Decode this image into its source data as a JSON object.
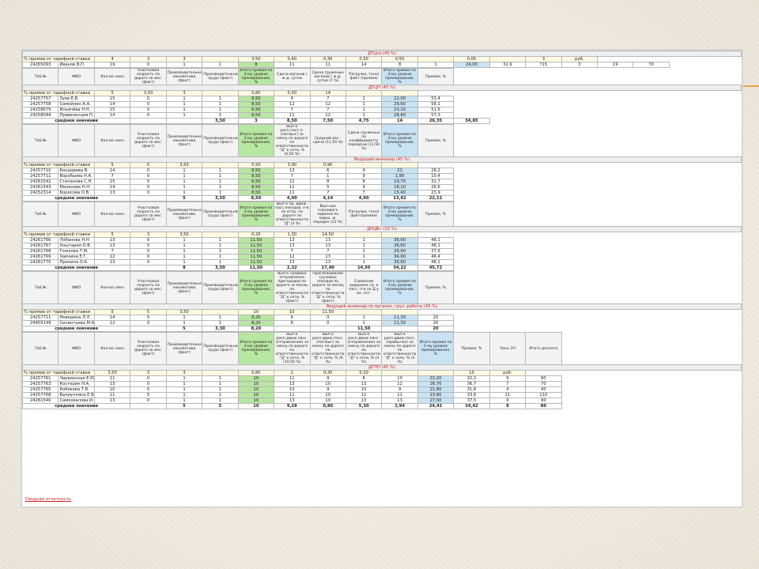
{
  "footer_link": "Сводная отчетность",
  "blocks": [
    {
      "title": "ДТЦэл (45 %)",
      "pct_row": [
        "% премии от тарифной ставки",
        "4",
        "3",
        "3",
        "",
        "3,50",
        "0,40",
        "0,30",
        "0,50",
        "0,50",
        "",
        "0,05",
        "",
        "3",
        "руб."
      ],
      "rows": [
        [
          "24265093",
          "Иванов В.П.",
          "19",
          "0",
          "1",
          "1",
          "8",
          "11",
          "11",
          "14",
          "8",
          "1",
          "24,00",
          "32,9",
          "715",
          "3",
          "19",
          "70"
        ]
      ],
      "avg": []
    },
    {
      "headers": [
        "Таб.№",
        "ФИО",
        "Кол-во смен",
        "Участковая скорость по дороге за мес. (факт)",
        "Производительность локомотива (факт)",
        "Производительность труда (факт)",
        "Итого премия по 2-му уровню премирования, %",
        "Сдача вагонов / ж.д. сутки",
        "Сдача груженых вагонов / ж.д. сутки (7 %)",
        "Погрузка, тонн/ факт (премия)",
        "Итого премия по 3-му уровню премирования, %",
        "Премия, %"
      ],
      "title": "ДТЦП (45 %)",
      "pct_row": [
        "% премии от тарифной ставки",
        "5",
        "3,50",
        "3",
        "",
        "0,80",
        "0,50",
        "14",
        "",
        ""
      ],
      "rows": [
        [
          "24257757",
          "Зуев Е.В.",
          "15",
          "0",
          "1",
          "1",
          "8,50",
          "9",
          "7",
          "1",
          "22,00",
          "53,4"
        ],
        [
          "24257758",
          "Самойлин А.А.",
          "14",
          "0",
          "1",
          "1",
          "8,50",
          "12",
          "12",
          "1",
          "29,60",
          "58,1"
        ],
        [
          "24258679",
          "Ильичёва Н.Н.",
          "15",
          "0",
          "1",
          "1",
          "8,50",
          "7",
          "7",
          "1",
          "23,10",
          "51,6"
        ],
        [
          "24258044",
          "Привезенцев П.И.",
          "14",
          "0",
          "1",
          "1",
          "8,50",
          "11",
          "12",
          "1",
          "28,80",
          "57,3"
        ]
      ],
      "avg": [
        "среднее значение",
        "",
        "",
        "3,50",
        "3",
        "8,50",
        "7,50",
        "4,75",
        "14",
        "26,35",
        "34,85"
      ]
    },
    {
      "headers": [
        "Таб.№",
        "ФИО",
        "Кол-во смен",
        "Участковая скорость по дороге за мес. (факт)",
        "Производительность локомотива (факт)",
        "Производительность труда (факт)",
        "Итого премия по 2-му уровню премирования, %",
        "Вып-е расп.пасс.п. (пог/выг) за смену по дороге по ответственности \"Д\" к сети, % (0,50 %)",
        "Средний вес - сдача (11,50 %)",
        "Сдача груженых по коэффициенту передачи (11,50 %)",
        "Итого премия по 3-му уровню премирования, %",
        "Премия, %"
      ],
      "title": "Ведущий инженер (45 %)",
      "pct_row": [
        "% премии от тарифной ставки",
        "5",
        "5",
        "3,50",
        "",
        "0,50",
        "3,90",
        "0,90",
        "",
        ""
      ],
      "rows": [
        [
          "24257710",
          "Бондарева В.",
          "14",
          "0",
          "1",
          "1",
          "8,50",
          "13",
          "6",
          "9",
          "23",
          "28,2"
        ],
        [
          "24257711",
          "Воробьева Н.А.",
          "7",
          "0",
          "1",
          "1",
          "8,50",
          "7",
          "1",
          "9",
          "1,90",
          "10,4"
        ],
        [
          "24261542",
          "Степанова С.Н.",
          "15",
          "0",
          "1",
          "1",
          "8,50",
          "11",
          "8",
          "8",
          "19,70",
          "31,7"
        ],
        [
          "24261543",
          "Малахова Н.Н.",
          "14",
          "0",
          "1",
          "1",
          "8,50",
          "11",
          "5",
          "9",
          "18,10",
          "26,6"
        ],
        [
          "24252314",
          "Борисова О.В.",
          "13",
          "0",
          "1",
          "1",
          "8,50",
          "11",
          "7",
          "7",
          "15,40",
          "23,9"
        ]
      ],
      "avg": [
        "среднее значение",
        "",
        "5",
        "3,50",
        "8,50",
        "4,00",
        "4,14",
        "4,60",
        "13,62",
        "22,12"
      ]
    },
    {
      "headers": [
        "Таб.№",
        "ФИО",
        "Кол-во смен",
        "Участковая скорость по дороге за мес. (факт)",
        "Производительность локомотива (факт)",
        "Производительность труда (факт)",
        "Итого премия по 2-му уровню премирования, %",
        "Вып-е пр. движ. пасс.поездов. п-в по отпр. по дороге по ответственности \"Д\" (3 %)",
        "Вып-ние планового задания по марш. ж. передач (21 %)",
        "Погрузка, тонн/ факт(премия)",
        "Итого премия по 3-му уровню премирования, %",
        "Премия, %"
      ],
      "title": "ДНЦВ» (33 %)",
      "pct_row": [
        "% премии от тарифной ставки",
        "5",
        "3",
        "3,50",
        "",
        "0,20",
        "1,30",
        "14,50",
        "",
        ""
      ],
      "rows": [
        [
          "24261766",
          "Лобанова Н.Н.",
          "13",
          "0",
          "1",
          "1",
          "11,50",
          "13",
          "13",
          "1",
          "36,60",
          "48,1"
        ],
        [
          "24261767",
          "Хоштария О.В.",
          "13",
          "0",
          "1",
          "1",
          "11,50",
          "13",
          "13",
          "1",
          "36,60",
          "48,1"
        ],
        [
          "24261768",
          "Гожкова Т.М.",
          "7",
          "0",
          "1",
          "1",
          "11,50",
          "7",
          "7",
          "1",
          "26,40",
          "37,9"
        ],
        [
          "24261769",
          "Хамзина Е.Г.",
          "12",
          "0",
          "1",
          "1",
          "11,50",
          "12",
          "13",
          "1",
          "34,90",
          "46,4"
        ],
        [
          "24261770",
          "Пронина О.А.",
          "13",
          "0",
          "1",
          "1",
          "11,50",
          "13",
          "13",
          "1",
          "36,60",
          "48,1"
        ]
      ],
      "avg": [
        "среднее значение",
        "",
        "8",
        "3,50",
        "11,50",
        "2,32",
        "17,40",
        "14,50",
        "34,22",
        "45,72"
      ]
    },
    {
      "headers": [
        "Таб.№",
        "ФИО",
        "Кол-во смен",
        "Участковая скорость по дороге за мес. (факт)",
        "Производительность локомотива (факт)",
        "Производительность труда (факт)",
        "Итого премия по 2-му уровню премирования, %",
        "Вып-е графика отправления пригородов по дороге за месяц по ответственности \"Д\" к сети, % (факт)",
        "Прослеживание грузовых поездов по дороге за месяц по ответственности \"Д\" к сети, % (факт)",
        "Снижение задержек гр. и пасс. п-в по Д у вх. сет.",
        "Итого премия по 3-му уровню премирования, %",
        "Премия, %"
      ],
      "title": "Ведущий инженер по организ. груз. работы (45 %)",
      "pct_row": [
        "% премии от тарифной ставки",
        "5",
        "5",
        "3,50",
        "",
        "10",
        "10",
        "11,50",
        "",
        ""
      ],
      "rows": [
        [
          "24257711",
          "Неведина Л.Л.",
          "14",
          "0",
          "1",
          "1",
          "8,20",
          "6",
          "0",
          "1",
          "11,30",
          "20"
        ],
        [
          "24455149",
          "Силантьева М.А.",
          "12",
          "0",
          "1",
          "1",
          "8,20",
          "6",
          "0",
          "1",
          "11,30",
          "20"
        ]
      ],
      "avg": [
        "среднее значение",
        "",
        "5",
        "3,30",
        "8,20",
        "",
        "",
        "11,50",
        "",
        "20"
      ]
    },
    {
      "headers": [
        "Таб.№",
        "ФИО",
        "Кол-во смен",
        "Участковая скорость по дороге за мес. (факт)",
        "Производительность локомотива (факт)",
        "Производительность труда (факт)",
        "Итого премия по 3-му уровню премирования, %",
        "Вып-е расп.движ.пасс. (отправление) за смену по дороге по ответственности \"Д\" к сети, % (10,50 %)",
        "Вып-е расп.движ.пасс. (пог/выг) за смену по дороге по ответственности \"Д\" к сети, % (6 %)",
        "Вып-е расп.движ.пасс. (отправление) за смену по дороге по ответственности \"Д\" к сети, % (4 %)",
        "Вып-е расп.движ.пасс. (прибытие) за смену по дороге по ответственности \"Д\" к сети, % (3 %)",
        "Итого премия по 2-му уровню премирования, %",
        "Премия, %",
        "Часы ЭЧ",
        "Итого доплата"
      ],
      "title": "ДГПП (45 %)",
      "pct_row": [
        "% премии от тарифной ставки",
        "3,50",
        "3",
        "3",
        "",
        "0,80",
        "1",
        "0,30",
        "0,20",
        "",
        "",
        "10",
        "руб."
      ],
      "rows": [
        [
          "24257761",
          "Червинская Е.Ю.",
          "11",
          "0",
          "1",
          "1",
          "10",
          "11",
          "9",
          "8",
          "10",
          "22,20",
          "32,2",
          "9",
          "90"
        ],
        [
          "24257763",
          "Костерин Н.А.",
          "13",
          "0",
          "1",
          "1",
          "10",
          "13",
          "10",
          "13",
          "12",
          "26,70",
          "36,7",
          "7",
          "70"
        ],
        [
          "24257765",
          "Кобякова Т.В.",
          "10",
          "0",
          "1",
          "1",
          "10",
          "10",
          "9",
          "10",
          "9",
          "21,80",
          "31,8",
          "4",
          "40"
        ],
        [
          "24257768",
          "Валиуллина Е.В.",
          "11",
          "0",
          "1",
          "1",
          "10",
          "11",
          "10",
          "11",
          "11",
          "23,80",
          "33,8",
          "11",
          "110"
        ],
        [
          "24261540",
          "Самохвалова И.Б.",
          "13",
          "0",
          "1",
          "1",
          "10",
          "13",
          "10",
          "13",
          "13",
          "27,50",
          "37,5",
          "9",
          "90"
        ]
      ],
      "avg": [
        "среднее значение",
        "",
        "5",
        "5",
        "10",
        "9,28",
        "0,80",
        "5,30",
        "2,94",
        "24,42",
        "34,42",
        "8",
        "80"
      ]
    }
  ]
}
